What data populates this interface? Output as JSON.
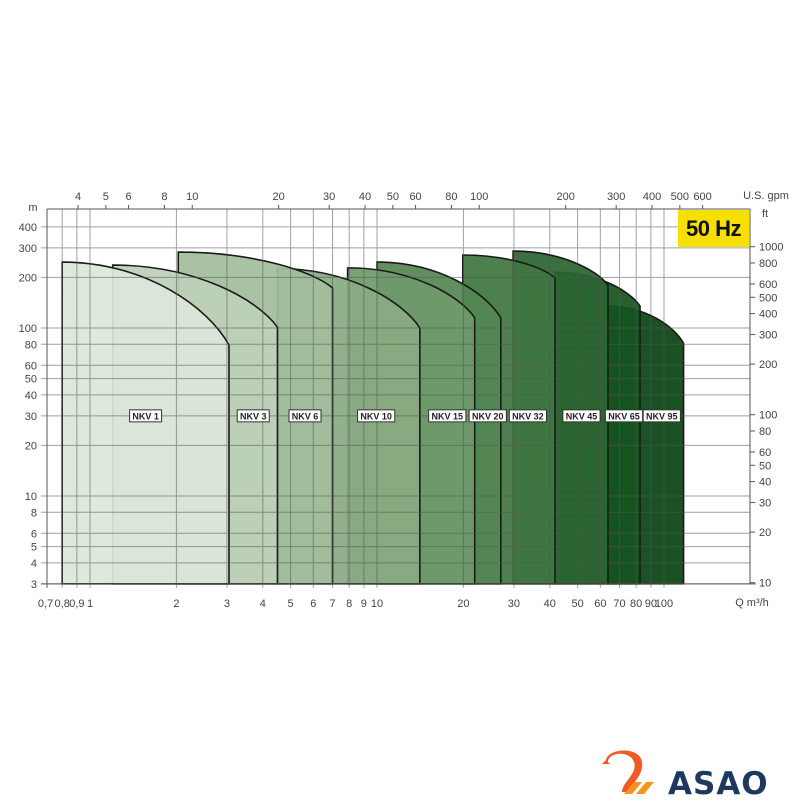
{
  "chart_data": {
    "type": "area",
    "title": "",
    "badge": "50 Hz",
    "x_axis": {
      "label": "Q m³/h",
      "scale": "log",
      "range": [
        0.7,
        200
      ],
      "ticks": [
        0.7,
        0.8,
        0.9,
        1,
        2,
        3,
        4,
        5,
        6,
        7,
        8,
        9,
        10,
        20,
        30,
        40,
        50,
        60,
        70,
        80,
        90,
        100
      ],
      "tick_labels": [
        "0,7",
        "0,8",
        "0,9",
        "1",
        "2",
        "3",
        "4",
        "5",
        "6",
        "7",
        "8",
        "9",
        "10",
        "20",
        "30",
        "40",
        "50",
        "60",
        "70",
        "80",
        "90",
        "100"
      ]
    },
    "x2_axis": {
      "label": "U.S. gpm",
      "scale": "log",
      "ticks": [
        4,
        5,
        6,
        8,
        10,
        20,
        30,
        40,
        50,
        60,
        80,
        100,
        200,
        300,
        400,
        500,
        600
      ]
    },
    "y_axis": {
      "label": "m",
      "scale": "log",
      "range": [
        3,
        510
      ],
      "ticks": [
        400,
        300,
        200,
        100,
        80,
        60,
        50,
        40,
        30,
        20,
        10,
        8,
        6,
        5,
        4,
        3
      ]
    },
    "y2_axis": {
      "label": "ft",
      "scale": "log",
      "ticks": [
        1000,
        800,
        600,
        500,
        400,
        300,
        200,
        100,
        80,
        60,
        50,
        40,
        30,
        20,
        10
      ]
    },
    "grid": true,
    "series": [
      {
        "name": "NKV 1",
        "q_min": 0.8,
        "q_max": 3.05,
        "h_at_qmin": 247,
        "h_at_qmax": 79,
        "color": "#dde6da"
      },
      {
        "name": "NKV 3",
        "q_min": 1.2,
        "q_max": 4.5,
        "h_at_qmin": 237,
        "h_at_qmax": 101,
        "color": "#bdd0b8"
      },
      {
        "name": "NKV 6",
        "q_min": 2.03,
        "q_max": 7.0,
        "h_at_qmin": 283,
        "h_at_qmax": 173,
        "color": "#a2bd9c"
      },
      {
        "name": "NKV 10",
        "q_min": 4.5,
        "q_max": 14.1,
        "h_at_qmin": 226,
        "h_at_qmax": 100,
        "color": "#89ab83"
      },
      {
        "name": "NKV 15",
        "q_min": 7.9,
        "q_max": 21.9,
        "h_at_qmin": 228,
        "h_at_qmax": 115,
        "color": "#6f9a6b"
      },
      {
        "name": "NKV 20",
        "q_min": 10.0,
        "q_max": 27.0,
        "h_at_qmin": 247,
        "h_at_qmax": 115,
        "color": "#558654"
      },
      {
        "name": "NKV 32",
        "q_min": 19.9,
        "q_max": 41.7,
        "h_at_qmin": 272,
        "h_at_qmax": 198,
        "color": "#3f7542"
      },
      {
        "name": "NKV 45",
        "q_min": 29.8,
        "q_max": 63.8,
        "h_at_qmin": 287,
        "h_at_qmax": 180,
        "color": "#2b6430"
      },
      {
        "name": "NKV 65",
        "q_min": 41.7,
        "q_max": 82.5,
        "h_at_qmin": 215,
        "h_at_qmax": 135,
        "color": "#18531f"
      },
      {
        "name": "NKV 95",
        "q_min": 63.8,
        "q_max": 117,
        "h_at_qmin": 135,
        "h_at_qmax": 81,
        "color": "#094513"
      }
    ],
    "label_head": 30
  },
  "logo": {
    "text": "ASAO",
    "primary_color": "#f05a28",
    "text_color": "#1d3a5c"
  }
}
